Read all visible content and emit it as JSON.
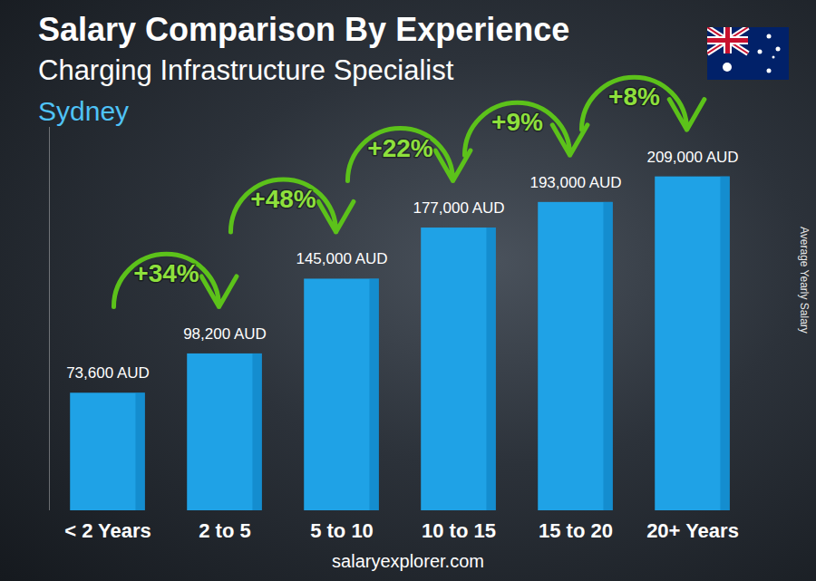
{
  "chart_data": {
    "type": "bar",
    "title": "Salary Comparison By Experience",
    "subtitle": "Charging Infrastructure Specialist",
    "location": "Sydney",
    "y_label": "Average Yearly Salary",
    "source": "salaryexplorer.com",
    "categories": [
      "< 2 Years",
      "2 to 5",
      "5 to 10",
      "10 to 15",
      "15 to 20",
      "20+ Years"
    ],
    "values": [
      73600,
      98200,
      145000,
      177000,
      193000,
      209000
    ],
    "value_labels": [
      "73,600 AUD",
      "98,200 AUD",
      "145,000 AUD",
      "177,000 AUD",
      "193,000 AUD",
      "209,000 AUD"
    ],
    "data_labels": true,
    "annotations": [
      "+34%",
      "+48%",
      "+22%",
      "+9%",
      "+8%"
    ],
    "color": "#1fa2e6",
    "ylim": [
      0,
      240000
    ],
    "tick_labels": "x"
  }
}
